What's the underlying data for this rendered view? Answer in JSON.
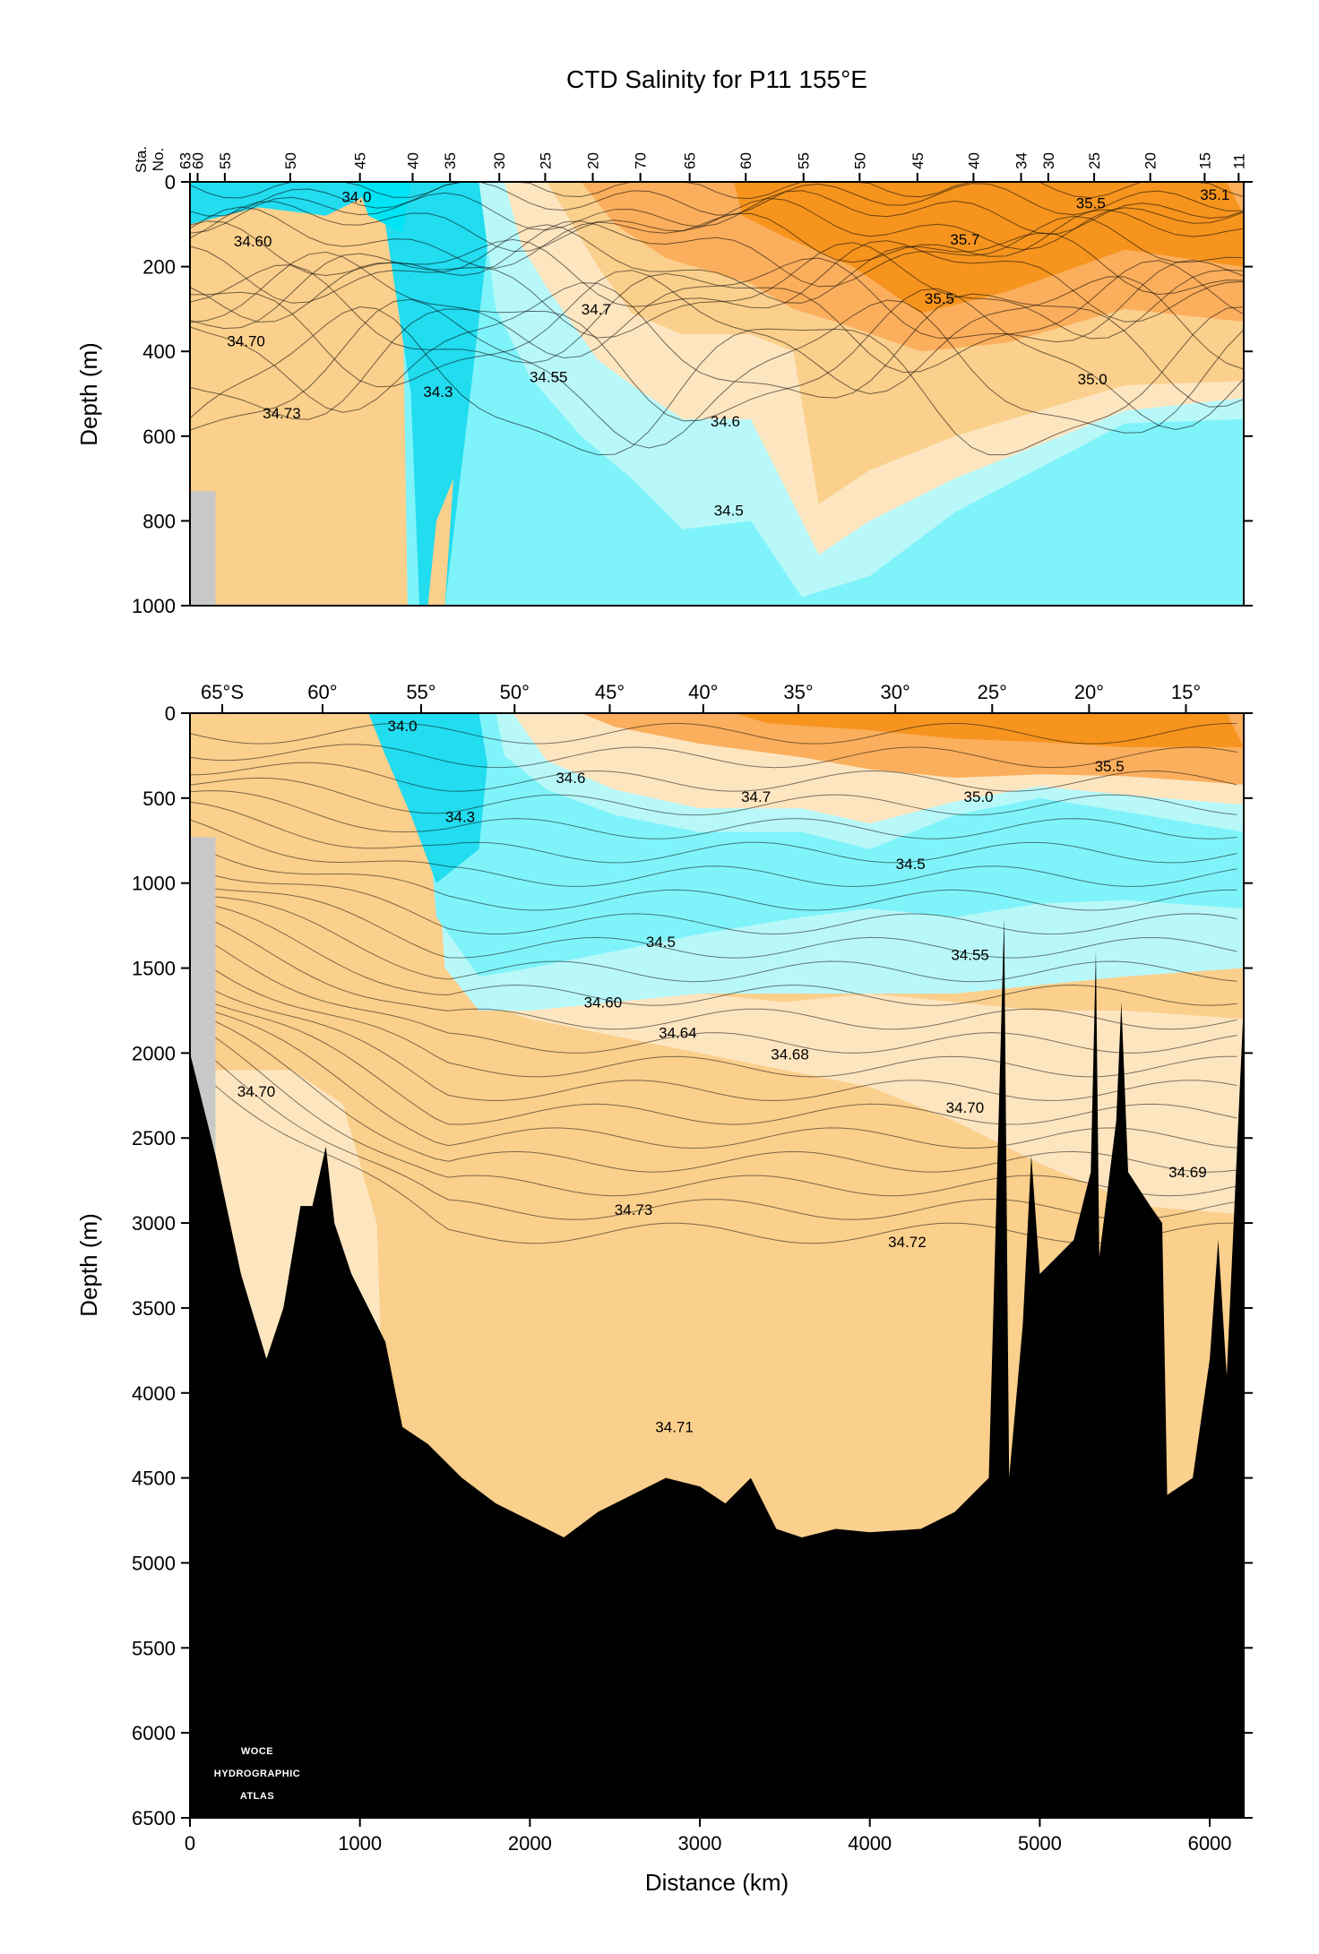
{
  "chart_data": {
    "type": "heatmap",
    "title": "CTD Salinity for P11 155°E",
    "colors": {
      "fresh_deep": "#00e5f5",
      "fresh": "#22dcef",
      "mid_fresh": "#7ff3fa",
      "light_fresh": "#b9f8f8",
      "light_salt": "#fde5c0",
      "mid_salt": "#fbcf8c",
      "salt": "#fbae5c",
      "very_salt": "#f6941e",
      "land": "#000000",
      "no_data": "#c8c8c8"
    },
    "panels": [
      {
        "id": "upper",
        "xlim": [
          0,
          6200
        ],
        "ylim": [
          0,
          1000
        ],
        "ylabel": "Depth (m)",
        "y_ticks": [
          "0",
          "200",
          "400",
          "600",
          "800",
          "1000"
        ],
        "y_tick_values": [
          0,
          200,
          400,
          600,
          800,
          1000
        ],
        "station_axis_label": [
          "Sta.",
          "No."
        ],
        "stations": [
          {
            "label": "63",
            "x": -30
          },
          {
            "label": "60",
            "x": 45
          },
          {
            "label": "55",
            "x": 205
          },
          {
            "label": "50",
            "x": 590
          },
          {
            "label": "45",
            "x": 1000
          },
          {
            "label": "40",
            "x": 1310
          },
          {
            "label": "35",
            "x": 1530
          },
          {
            "label": "30",
            "x": 1820
          },
          {
            "label": "25",
            "x": 2090
          },
          {
            "label": "20",
            "x": 2370
          },
          {
            "label": "70",
            "x": 2650
          },
          {
            "label": "65",
            "x": 2940
          },
          {
            "label": "60",
            "x": 3270
          },
          {
            "label": "55",
            "x": 3610
          },
          {
            "label": "50",
            "x": 3940
          },
          {
            "label": "45",
            "x": 4280
          },
          {
            "label": "40",
            "x": 4610
          },
          {
            "label": "34",
            "x": 4890
          },
          {
            "label": "30",
            "x": 5050
          },
          {
            "label": "25",
            "x": 5320
          },
          {
            "label": "20",
            "x": 5650
          },
          {
            "label": "15",
            "x": 5970
          },
          {
            "label": "11",
            "x": 6170
          }
        ],
        "contour_labels": [
          {
            "text": "34.0",
            "x": 980,
            "y": 35
          },
          {
            "text": "35.5",
            "x": 5300,
            "y": 50
          },
          {
            "text": "35.1",
            "x": 6030,
            "y": 30
          },
          {
            "text": "34.60",
            "x": 370,
            "y": 140
          },
          {
            "text": "35.7",
            "x": 4560,
            "y": 135
          },
          {
            "text": "35.5",
            "x": 4410,
            "y": 275
          },
          {
            "text": "34.7",
            "x": 2390,
            "y": 300
          },
          {
            "text": "34.70",
            "x": 330,
            "y": 375
          },
          {
            "text": "34.55",
            "x": 2110,
            "y": 460
          },
          {
            "text": "35.0",
            "x": 5310,
            "y": 465
          },
          {
            "text": "34.3",
            "x": 1460,
            "y": 495
          },
          {
            "text": "34.73",
            "x": 540,
            "y": 545
          },
          {
            "text": "34.6",
            "x": 3150,
            "y": 565
          },
          {
            "text": "34.5",
            "x": 3170,
            "y": 775
          }
        ]
      },
      {
        "id": "lower",
        "xlim": [
          0,
          6200
        ],
        "ylim": [
          0,
          6500
        ],
        "xlabel": "Distance (km)",
        "ylabel": "Depth (m)",
        "x_ticks": [
          "0",
          "1000",
          "2000",
          "3000",
          "4000",
          "5000",
          "6000"
        ],
        "x_tick_values": [
          0,
          1000,
          2000,
          3000,
          4000,
          5000,
          6000
        ],
        "y_ticks": [
          "0",
          "500",
          "1000",
          "1500",
          "2000",
          "2500",
          "3000",
          "3500",
          "4000",
          "4500",
          "5000",
          "5500",
          "6000",
          "6500"
        ],
        "y_tick_values": [
          0,
          500,
          1000,
          1500,
          2000,
          2500,
          3000,
          3500,
          4000,
          4500,
          5000,
          5500,
          6000,
          6500
        ],
        "latitudes": [
          {
            "label": "65°S",
            "x": 190
          },
          {
            "label": "60°",
            "x": 780
          },
          {
            "label": "55°",
            "x": 1360
          },
          {
            "label": "50°",
            "x": 1910
          },
          {
            "label": "45°",
            "x": 2470
          },
          {
            "label": "40°",
            "x": 3020
          },
          {
            "label": "35°",
            "x": 3580
          },
          {
            "label": "30°",
            "x": 4150
          },
          {
            "label": "25°",
            "x": 4720
          },
          {
            "label": "20°",
            "x": 5290
          },
          {
            "label": "15°",
            "x": 5860
          }
        ],
        "contour_labels": [
          {
            "text": "34.0",
            "x": 1250,
            "y": 75
          },
          {
            "text": "35.5",
            "x": 5410,
            "y": 310
          },
          {
            "text": "34.6",
            "x": 2240,
            "y": 380
          },
          {
            "text": "34.7",
            "x": 3330,
            "y": 490
          },
          {
            "text": "35.0",
            "x": 4640,
            "y": 490
          },
          {
            "text": "34.3",
            "x": 1590,
            "y": 610
          },
          {
            "text": "34.5",
            "x": 4240,
            "y": 885
          },
          {
            "text": "34.5",
            "x": 2770,
            "y": 1345
          },
          {
            "text": "34.55",
            "x": 4590,
            "y": 1420
          },
          {
            "text": "34.60",
            "x": 2430,
            "y": 1700
          },
          {
            "text": "34.64",
            "x": 2870,
            "y": 1880
          },
          {
            "text": "34.68",
            "x": 3530,
            "y": 2005
          },
          {
            "text": "34.70",
            "x": 390,
            "y": 2225
          },
          {
            "text": "34.70",
            "x": 4560,
            "y": 2320
          },
          {
            "text": "34.69",
            "x": 5870,
            "y": 2700
          },
          {
            "text": "34.73",
            "x": 2610,
            "y": 2920
          },
          {
            "text": "34.72",
            "x": 4220,
            "y": 3110
          },
          {
            "text": "34.71",
            "x": 2850,
            "y": 4200
          }
        ]
      }
    ]
  },
  "logo": {
    "lines": [
      "WOCE",
      "HYDROGRAPHIC",
      "ATLAS"
    ]
  }
}
